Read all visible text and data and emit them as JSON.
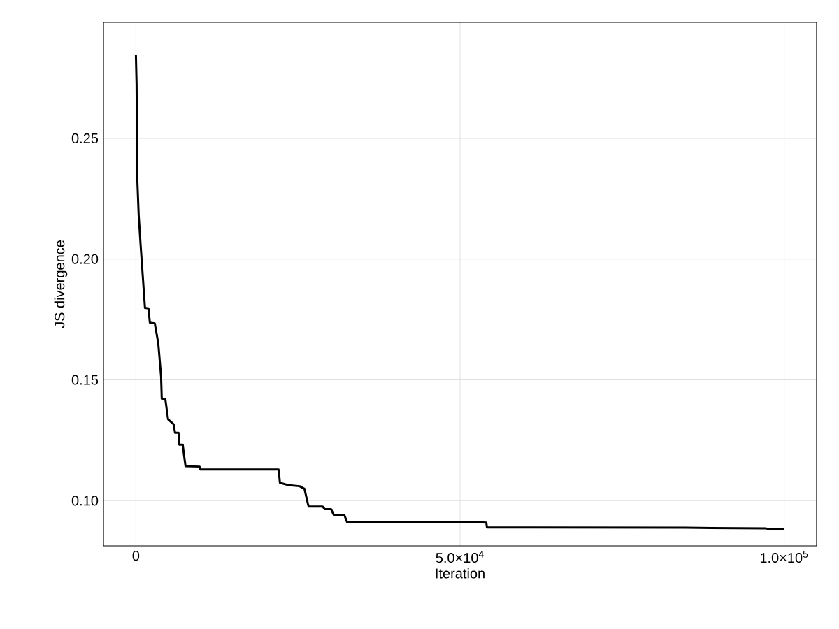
{
  "chart_data": {
    "type": "line",
    "xlabel": "Iteration",
    "ylabel": "JS divergence",
    "x": [
      0,
      108,
      216,
      431,
      755,
      1294,
      1402,
      1942,
      2157,
      2912,
      3452,
      3883,
      3991,
      4531,
      4962,
      5825,
      6041,
      6580,
      6688,
      7227,
      7443,
      7659,
      9816,
      9924,
      22005,
      22221,
      23408,
      25242,
      25997,
      26536,
      26644,
      28801,
      29125,
      30096,
      30527,
      32145,
      32577,
      34303,
      53504,
      54043,
      54151,
      84786,
      97191,
      97406,
      100000
    ],
    "series": [
      {
        "color": "#000000",
        "values": [
          0.2847,
          0.2726,
          0.2331,
          0.2183,
          0.2048,
          0.184,
          0.1798,
          0.1796,
          0.1737,
          0.1734,
          0.1651,
          0.1515,
          0.1422,
          0.1422,
          0.1337,
          0.1316,
          0.1281,
          0.1281,
          0.1232,
          0.1232,
          0.1184,
          0.1143,
          0.1141,
          0.1129,
          0.1129,
          0.1074,
          0.1065,
          0.106,
          0.1049,
          0.0987,
          0.0976,
          0.0976,
          0.0965,
          0.0965,
          0.0941,
          0.0941,
          0.0911,
          0.091,
          0.091,
          0.0909,
          0.0889,
          0.0888,
          0.0885,
          0.0884,
          0.0884
        ]
      }
    ],
    "xlim": [
      -5000,
      105000
    ],
    "ylim": [
      0.0813,
      0.298
    ],
    "xticks": [
      0,
      {
        "value": 50000,
        "label": "5.0×10$^{4}$"
      },
      {
        "value": 100000,
        "label": "1.0×10$^{5}$"
      }
    ],
    "yticks": [
      {
        "value": 0.1,
        "label": "0.10"
      },
      0.15,
      {
        "value": 0.2,
        "label": "0.20"
      },
      0.25
    ],
    "grid": true,
    "line_style": "solid",
    "marker": "none"
  }
}
